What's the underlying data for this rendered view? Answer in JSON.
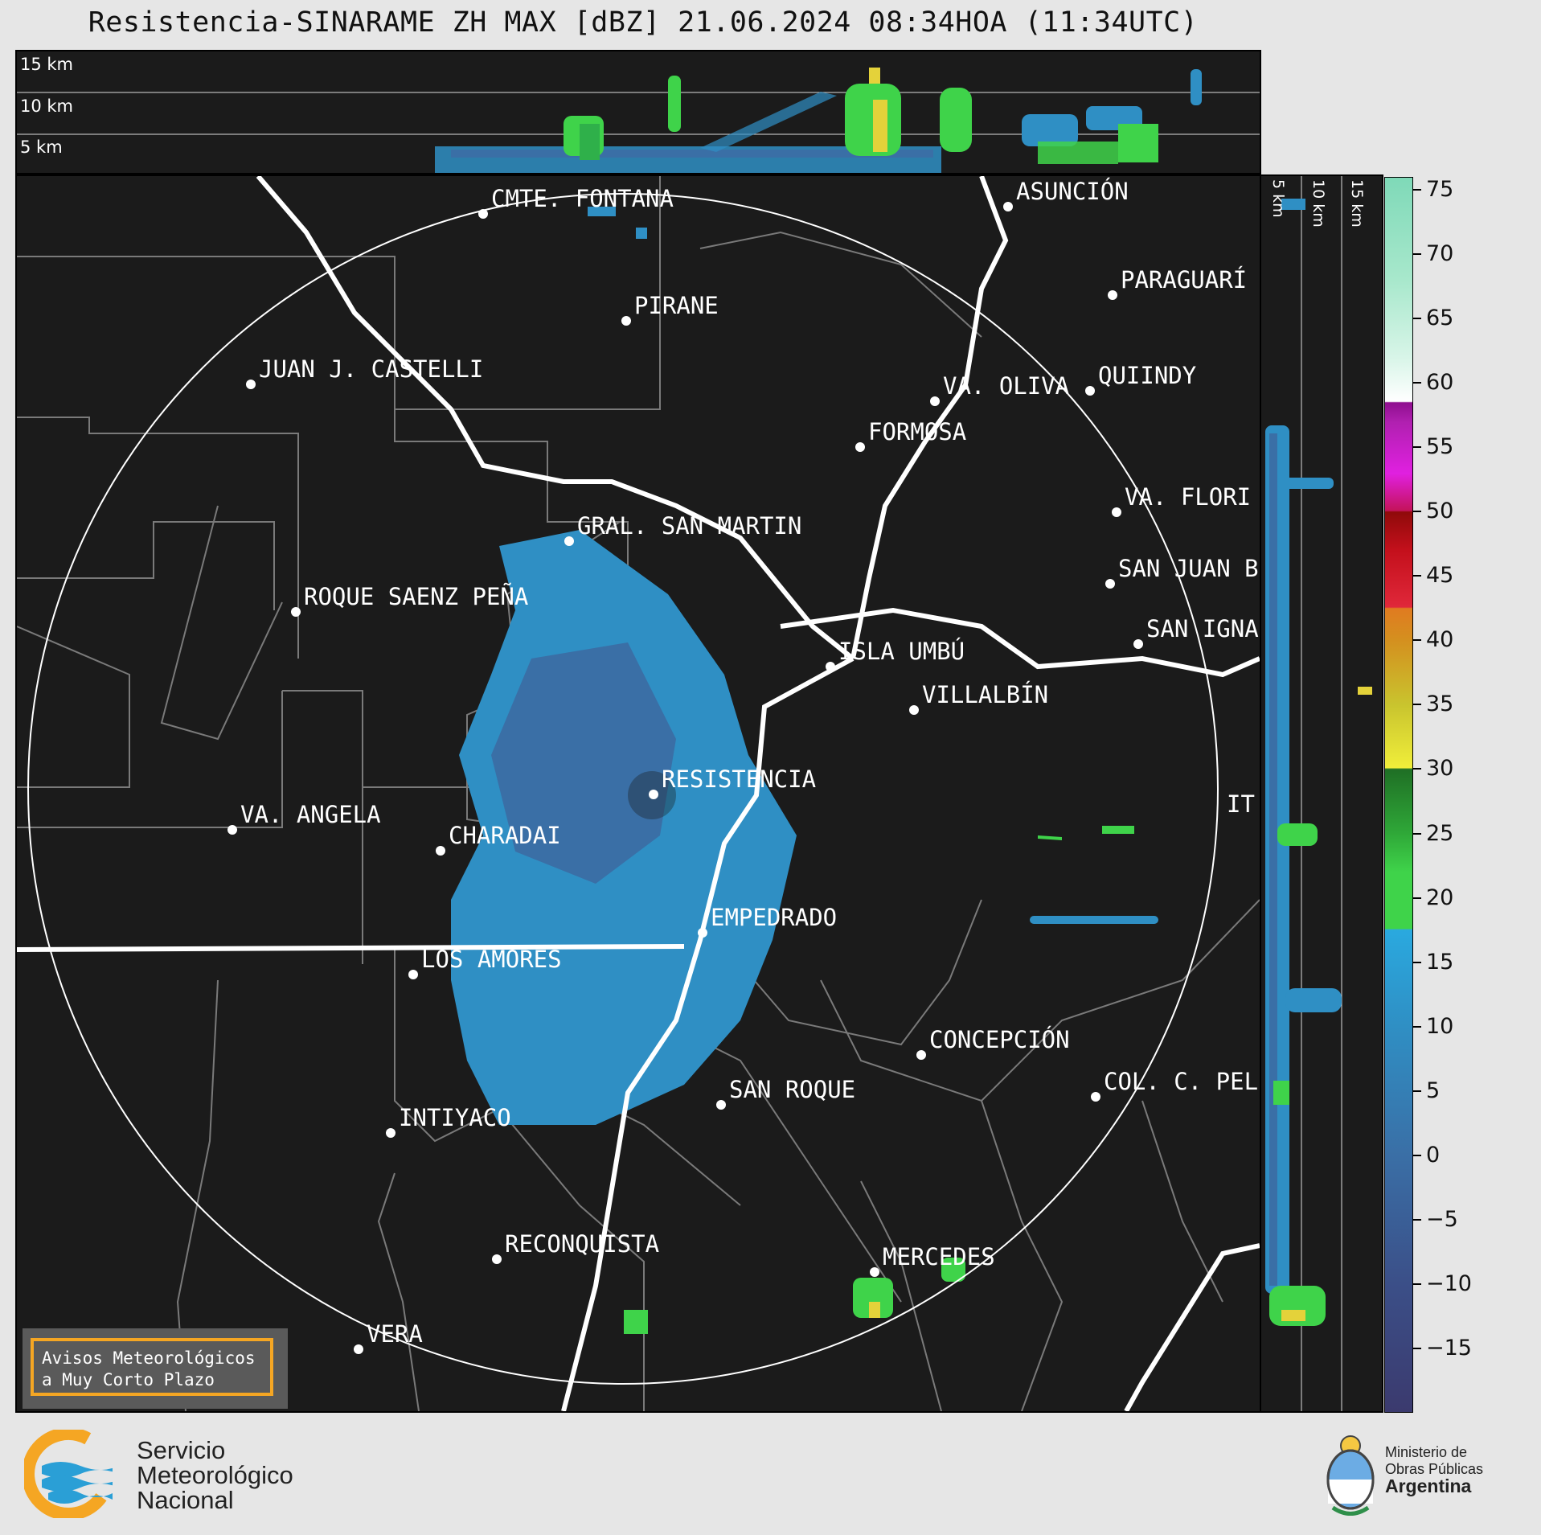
{
  "title": "Resistencia-SINARAME ZH MAX [dBZ] 21.06.2024 08:34HOA (11:34UTC)",
  "top_panel": {
    "altitude_labels": [
      "15 km",
      "10 km",
      "5 km"
    ]
  },
  "side_panel": {
    "altitude_labels": [
      "5 km",
      "10 km",
      "15 km"
    ]
  },
  "cities": [
    {
      "name": "CMTE. FONTANA"
    },
    {
      "name": "ASUNCIÓN"
    },
    {
      "name": "PIRANE"
    },
    {
      "name": "PARAGUARÍ"
    },
    {
      "name": "JUAN J. CASTELLI"
    },
    {
      "name": "VA. OLIVA"
    },
    {
      "name": "QUIINDY"
    },
    {
      "name": "FORMOSA"
    },
    {
      "name": "VA. FLORI"
    },
    {
      "name": "GRAL. SAN MARTIN"
    },
    {
      "name": "SAN JUAN B"
    },
    {
      "name": "ROQUE SAENZ PEÑA"
    },
    {
      "name": "SAN IGNA"
    },
    {
      "name": "ISLA UMBÚ"
    },
    {
      "name": "VILLALBÍN"
    },
    {
      "name": "RESISTENCIA"
    },
    {
      "name": "VA. ANGELA"
    },
    {
      "name": "CHARADAI"
    },
    {
      "name": "IT"
    },
    {
      "name": "EMPEDRADO"
    },
    {
      "name": "LOS AMORES"
    },
    {
      "name": "CONCEPCIÓN"
    },
    {
      "name": "SAN ROQUE"
    },
    {
      "name": "COL. C. PEL"
    },
    {
      "name": "INTIYACO"
    },
    {
      "name": "RECONQUISTA"
    },
    {
      "name": "MERCEDES"
    },
    {
      "name": "VERA"
    }
  ],
  "colorbar": {
    "unit": "dBZ",
    "range": [
      -20,
      76
    ],
    "tick_labels": [
      "75",
      "70",
      "65",
      "60",
      "55",
      "50",
      "45",
      "40",
      "35",
      "30",
      "25",
      "20",
      "15",
      "10",
      "5",
      "0",
      "−5",
      "−10",
      "−15"
    ]
  },
  "avisos": {
    "line1": "Avisos Meteorológicos",
    "line2": "a Muy Corto Plazo"
  },
  "smn": {
    "line1": "Servicio",
    "line2": "Meteorológico",
    "line3": "Nacional"
  },
  "ministry": {
    "line1": "Ministerio de",
    "line2": "Obras Públicas",
    "line3": "Argentina"
  },
  "colors": {
    "panel_bg": "#1b1b1b",
    "echo_light": "#2f8fc4",
    "echo_dark": "#3a6fa6",
    "echo_green": "#3fd34a",
    "echo_yellow": "#e4d23a",
    "accent_orange": "#f5a623",
    "smn_blue": "#2a9fd6"
  }
}
